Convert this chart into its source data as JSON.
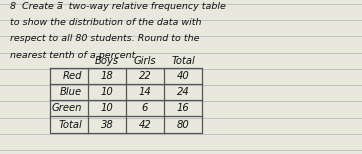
{
  "title_lines": [
    "8  Create a̅  two-way relative frequency table",
    "to show the distribution of the data with",
    "respect to all 80 students. Round to the",
    "nearest tenth of a percent."
  ],
  "col_headers": [
    "Boys",
    "Girls",
    "Total"
  ],
  "row_headers": [
    "Red",
    "Blue",
    "Green",
    "Total"
  ],
  "table_data": [
    [
      "18",
      "22",
      "40"
    ],
    [
      "10",
      "14",
      "24"
    ],
    [
      "10",
      "6",
      "16"
    ],
    [
      "38",
      "42",
      "80"
    ]
  ],
  "bg_color": "#e8e8dc",
  "line_color": "#8899bb",
  "grid_color": "#555555",
  "text_color": "#111111",
  "title_fontsize": 6.8,
  "table_fontsize": 7.2,
  "num_ruled_lines": 9,
  "ruled_line_color": "#a0aac0"
}
